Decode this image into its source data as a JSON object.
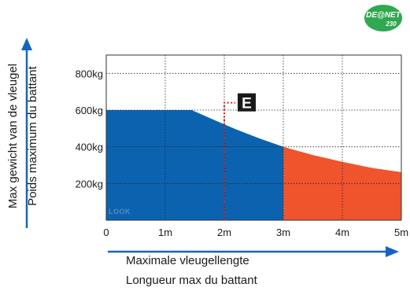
{
  "logo": {
    "text": "DE@NET",
    "sub": "230",
    "color": "#2fa84f"
  },
  "chart_data": {
    "type": "area",
    "x_ticks": [
      {
        "value": 0,
        "label": "0"
      },
      {
        "value": 1,
        "label": "1m"
      },
      {
        "value": 2,
        "label": "2m"
      },
      {
        "value": 3,
        "label": "3m"
      },
      {
        "value": 4,
        "label": "4m"
      },
      {
        "value": 5,
        "label": "5m"
      }
    ],
    "y_ticks": [
      {
        "value": 200,
        "label": "200kg"
      },
      {
        "value": 400,
        "label": "400kg"
      },
      {
        "value": 600,
        "label": "600kg"
      },
      {
        "value": 800,
        "label": "800kg"
      }
    ],
    "xlim": [
      0,
      5
    ],
    "ylim": [
      0,
      900
    ],
    "grid": "dotted",
    "series": [
      {
        "color": "#0b63b0",
        "x": [
          0,
          1.45,
          1.8,
          2.2,
          2.6,
          3.0
        ],
        "y": [
          600,
          600,
          550,
          495,
          445,
          400
        ]
      },
      {
        "color": "#f0542c",
        "x": [
          3.0,
          3.5,
          4.0,
          4.5,
          5.0
        ],
        "y": [
          400,
          355,
          318,
          285,
          262
        ]
      }
    ],
    "marker": {
      "label": "E",
      "x": 2.0,
      "y": 640,
      "line_color": "#e02020"
    },
    "xlabel": [
      "Maximale vleugellengte",
      "Longueur max du battant"
    ],
    "ylabel": [
      "Max gewicht van de vleugel",
      "Poids maximum du battant"
    ],
    "watermark": "LOOK",
    "arrow_color": "#1565c0"
  }
}
